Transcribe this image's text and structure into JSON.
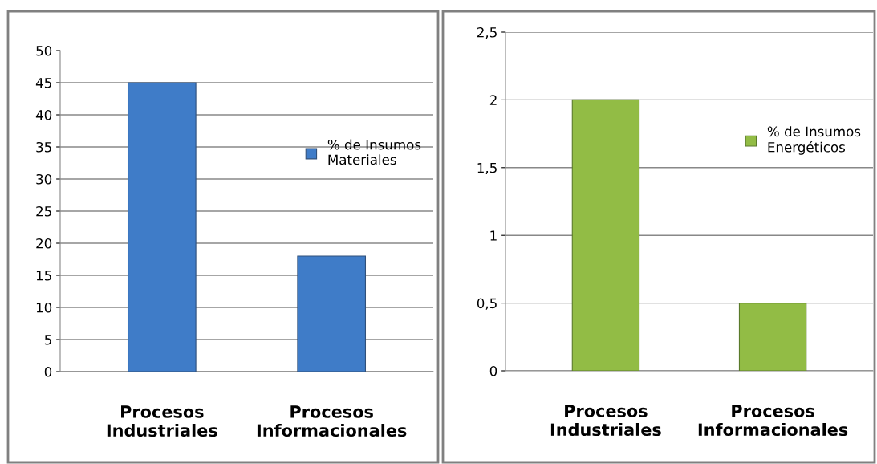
{
  "chart_data": [
    {
      "type": "bar",
      "categories": [
        "Procesos\nIndustriales",
        "Procesos\nInformacionales"
      ],
      "series": [
        {
          "name": "% de Insumos\nMateriales",
          "color": "#3f7cc8",
          "values": [
            45,
            18
          ]
        }
      ],
      "ylim": [
        0,
        50
      ],
      "yticks": [
        0,
        5,
        10,
        15,
        20,
        25,
        30,
        35,
        40,
        45,
        50
      ],
      "grid": "y",
      "legend": "right"
    },
    {
      "type": "bar",
      "categories": [
        "Procesos\nIndustriales",
        "Procesos\nInformacionales"
      ],
      "series": [
        {
          "name": "% de Insumos\nEnergéticos",
          "color": "#92bc45",
          "values": [
            2,
            0.5
          ]
        }
      ],
      "ylim": [
        0,
        2.5
      ],
      "yticks": [
        0,
        {
          "value": 0.5,
          "label": "0,5"
        },
        1,
        {
          "value": 1.5,
          "label": "1,5"
        },
        2,
        {
          "value": 2.5,
          "label": "2,5"
        }
      ],
      "grid": "y",
      "legend": "right"
    }
  ]
}
